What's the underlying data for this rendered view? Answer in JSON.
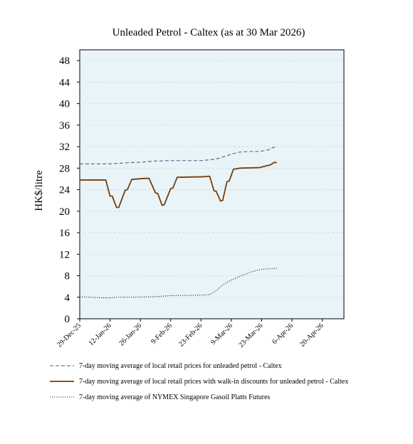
{
  "chart_data": {
    "type": "line",
    "title": "Unleaded Petrol - Caltex (as at 30 Mar 2026)",
    "xlabel": "",
    "ylabel": "HK$/litre",
    "ylim": [
      0,
      50
    ],
    "y_ticks": [
      0,
      4,
      8,
      12,
      16,
      20,
      24,
      28,
      32,
      36,
      40,
      44,
      48
    ],
    "x_range": [
      "2025-12-29",
      "2026-04-30"
    ],
    "x_ticks": [
      "29-Dec-25",
      "12-Jan-26",
      "26-Jan-26",
      "9-Feb-26",
      "23-Feb-26",
      "9-Mar-26",
      "23-Mar-26",
      "6-Apr-26",
      "20-Apr-26"
    ],
    "x_tick_dates": [
      "2025-12-29",
      "2026-01-12",
      "2026-01-26",
      "2026-02-09",
      "2026-02-23",
      "2026-03-09",
      "2026-03-23",
      "2026-04-06",
      "2026-04-20"
    ],
    "plot_background": "#e8f4f8",
    "grid": "horizontal dashed",
    "legend_position": "bottom",
    "series": [
      {
        "name": "7-day moving average of local retail prices for unleaded petrol - Caltex",
        "style": "dashed",
        "color": "#5a5a8c",
        "points": [
          [
            "2025-12-29",
            28.8
          ],
          [
            "2026-01-12",
            28.8
          ],
          [
            "2026-01-16",
            28.9
          ],
          [
            "2026-01-20",
            29.0
          ],
          [
            "2026-01-26",
            29.1
          ],
          [
            "2026-02-01",
            29.3
          ],
          [
            "2026-02-09",
            29.4
          ],
          [
            "2026-02-23",
            29.4
          ],
          [
            "2026-02-28",
            29.6
          ],
          [
            "2026-03-03",
            29.8
          ],
          [
            "2026-03-06",
            30.2
          ],
          [
            "2026-03-09",
            30.6
          ],
          [
            "2026-03-13",
            31.0
          ],
          [
            "2026-03-17",
            31.1
          ],
          [
            "2026-03-22",
            31.1
          ],
          [
            "2026-03-26",
            31.4
          ],
          [
            "2026-03-28",
            31.8
          ],
          [
            "2026-03-30",
            32.0
          ]
        ]
      },
      {
        "name": "7-day moving average of local retail prices with walk-in discounts for unleaded petrol - Caltex",
        "style": "solid",
        "color": "#7a3d0a",
        "points": [
          [
            "2025-12-29",
            25.8
          ],
          [
            "2026-01-10",
            25.8
          ],
          [
            "2026-01-12",
            22.8
          ],
          [
            "2026-01-13",
            22.8
          ],
          [
            "2026-01-15",
            20.7
          ],
          [
            "2026-01-16",
            20.7
          ],
          [
            "2026-01-19",
            23.9
          ],
          [
            "2026-01-20",
            24.0
          ],
          [
            "2026-01-22",
            25.9
          ],
          [
            "2026-01-25",
            26.0
          ],
          [
            "2026-01-28",
            26.1
          ],
          [
            "2026-01-30",
            26.1
          ],
          [
            "2026-02-02",
            23.4
          ],
          [
            "2026-02-03",
            23.3
          ],
          [
            "2026-02-05",
            21.1
          ],
          [
            "2026-02-06",
            21.2
          ],
          [
            "2026-02-09",
            24.2
          ],
          [
            "2026-02-10",
            24.3
          ],
          [
            "2026-02-12",
            26.3
          ],
          [
            "2026-02-24",
            26.4
          ],
          [
            "2026-02-27",
            26.5
          ],
          [
            "2026-03-01",
            23.8
          ],
          [
            "2026-03-02",
            23.7
          ],
          [
            "2026-03-04",
            21.9
          ],
          [
            "2026-03-05",
            22.0
          ],
          [
            "2026-03-07",
            25.5
          ],
          [
            "2026-03-08",
            25.6
          ],
          [
            "2026-03-10",
            27.8
          ],
          [
            "2026-03-13",
            28.0
          ],
          [
            "2026-03-22",
            28.1
          ],
          [
            "2026-03-27",
            28.6
          ],
          [
            "2026-03-29",
            29.1
          ],
          [
            "2026-03-30",
            29.0
          ]
        ]
      },
      {
        "name": "7-day moving average of NYMEX Singapore Gasoil Platts Futures",
        "style": "dotted",
        "color": "#333333",
        "points": [
          [
            "2025-12-29",
            4.1
          ],
          [
            "2026-01-03",
            4.0
          ],
          [
            "2026-01-08",
            3.9
          ],
          [
            "2026-01-12",
            3.9
          ],
          [
            "2026-01-15",
            4.0
          ],
          [
            "2026-01-23",
            4.0
          ],
          [
            "2026-02-01",
            4.1
          ],
          [
            "2026-02-09",
            4.3
          ],
          [
            "2026-02-23",
            4.4
          ],
          [
            "2026-02-27",
            4.5
          ],
          [
            "2026-03-02",
            5.2
          ],
          [
            "2026-03-05",
            6.3
          ],
          [
            "2026-03-09",
            7.2
          ],
          [
            "2026-03-13",
            7.9
          ],
          [
            "2026-03-18",
            8.7
          ],
          [
            "2026-03-23",
            9.2
          ],
          [
            "2026-03-27",
            9.3
          ],
          [
            "2026-03-30",
            9.4
          ]
        ]
      }
    ]
  }
}
